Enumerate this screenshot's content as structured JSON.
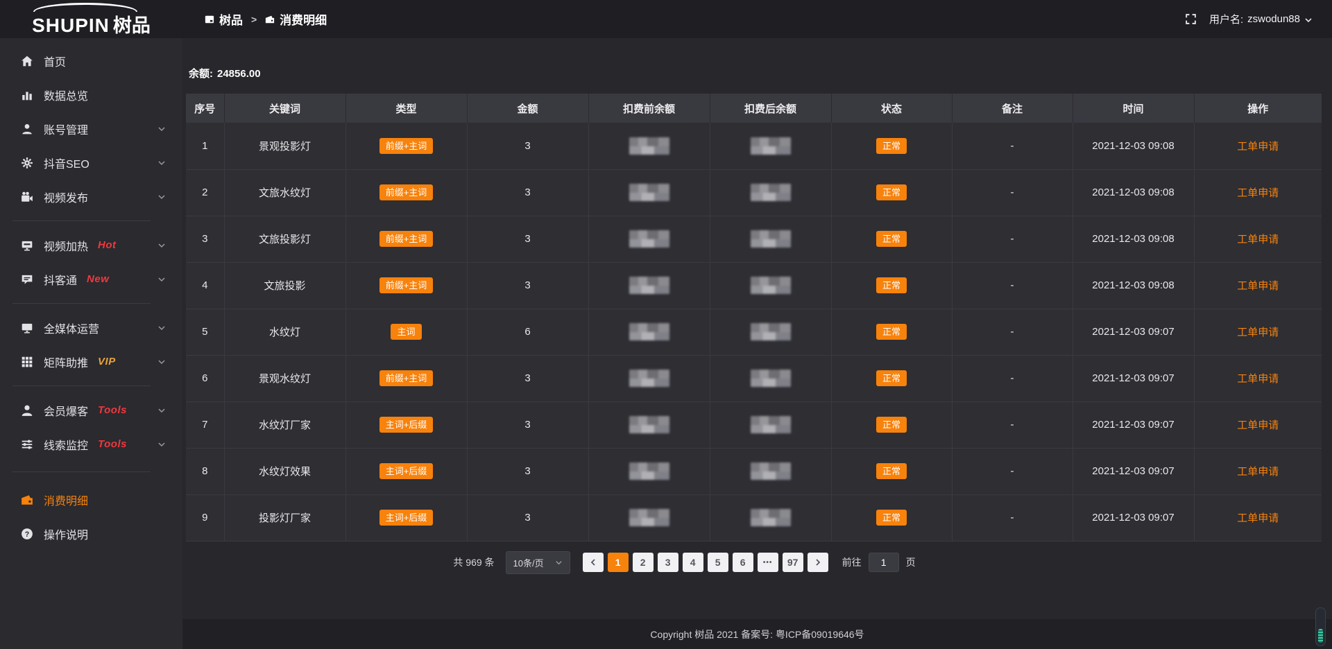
{
  "brand": {
    "logo_text": "SHUPIN",
    "logo_cn": "树品"
  },
  "topbar": {
    "breadcrumb": [
      {
        "label": "树品",
        "icon": "app-window-icon"
      },
      {
        "label": "消费明细",
        "icon": "wallet-icon"
      }
    ],
    "separator": ">",
    "username_label": "用户名:",
    "username": "zswodun88"
  },
  "sidebar": {
    "items": [
      {
        "label": "首页",
        "icon": "home-icon"
      },
      {
        "label": "数据总览",
        "icon": "bar-chart-icon"
      },
      {
        "label": "账号管理",
        "icon": "user-icon",
        "expandable": true
      },
      {
        "label": "抖音SEO",
        "icon": "gear-icon",
        "expandable": true
      },
      {
        "label": "视频发布",
        "icon": "video-camera-icon",
        "expandable": true
      },
      {
        "divider": true
      },
      {
        "label": "视频加热",
        "icon": "screen-cast-icon",
        "tag": "Hot",
        "tag_color": "#f0383e",
        "expandable": true
      },
      {
        "label": "抖客通",
        "icon": "chat-icon",
        "tag": "New",
        "tag_color": "#f0383e",
        "expandable": true
      },
      {
        "divider": true
      },
      {
        "label": "全媒体运营",
        "icon": "monitor-icon",
        "expandable": true
      },
      {
        "label": "矩阵助推",
        "icon": "grid-icon",
        "tag": "VIP",
        "tag_color": "#e8a33d",
        "expandable": true
      },
      {
        "divider": true
      },
      {
        "label": "会员爆客",
        "icon": "member-icon",
        "tag": "Tools",
        "tag_color": "#f0383e",
        "expandable": true
      },
      {
        "label": "线索监控",
        "icon": "filter-icon",
        "tag": "Tools",
        "tag_color": "#f0383e",
        "expandable": true
      },
      {
        "divider": true,
        "wide": true
      },
      {
        "label": "消费明细",
        "icon": "wallet-icon",
        "active": true
      },
      {
        "label": "操作说明",
        "icon": "question-icon"
      }
    ]
  },
  "main": {
    "balance_label": "余额:",
    "balance_value": "24856.00",
    "table": {
      "headers": [
        "序号",
        "关键词",
        "类型",
        "金额",
        "扣费前余额",
        "扣费后余额",
        "状态",
        "备注",
        "时间",
        "操作"
      ],
      "rows": [
        {
          "no": "1",
          "keyword": "景观投影灯",
          "type": "前缀+主词",
          "amount": "3",
          "status": "正常",
          "remark": "-",
          "time": "2021-12-03 09:08",
          "action": "工单申请"
        },
        {
          "no": "2",
          "keyword": "文旅水纹灯",
          "type": "前缀+主词",
          "amount": "3",
          "status": "正常",
          "remark": "-",
          "time": "2021-12-03 09:08",
          "action": "工单申请"
        },
        {
          "no": "3",
          "keyword": "文旅投影灯",
          "type": "前缀+主词",
          "amount": "3",
          "status": "正常",
          "remark": "-",
          "time": "2021-12-03 09:08",
          "action": "工单申请"
        },
        {
          "no": "4",
          "keyword": "文旅投影",
          "type": "前缀+主词",
          "amount": "3",
          "status": "正常",
          "remark": "-",
          "time": "2021-12-03 09:08",
          "action": "工单申请"
        },
        {
          "no": "5",
          "keyword": "水纹灯",
          "type": "主词",
          "amount": "6",
          "status": "正常",
          "remark": "-",
          "time": "2021-12-03 09:07",
          "action": "工单申请"
        },
        {
          "no": "6",
          "keyword": "景观水纹灯",
          "type": "前缀+主词",
          "amount": "3",
          "status": "正常",
          "remark": "-",
          "time": "2021-12-03 09:07",
          "action": "工单申请"
        },
        {
          "no": "7",
          "keyword": "水纹灯厂家",
          "type": "主词+后缀",
          "amount": "3",
          "status": "正常",
          "remark": "-",
          "time": "2021-12-03 09:07",
          "action": "工单申请"
        },
        {
          "no": "8",
          "keyword": "水纹灯效果",
          "type": "主词+后缀",
          "amount": "3",
          "status": "正常",
          "remark": "-",
          "time": "2021-12-03 09:07",
          "action": "工单申请"
        },
        {
          "no": "9",
          "keyword": "投影灯厂家",
          "type": "主词+后缀",
          "amount": "3",
          "status": "正常",
          "remark": "-",
          "time": "2021-12-03 09:07",
          "action": "工单申请"
        }
      ]
    },
    "pagination": {
      "total_text": "共 969 条",
      "page_size": "10条/页",
      "pages": [
        "1",
        "2",
        "3",
        "4",
        "5",
        "6",
        "...",
        "97"
      ],
      "active_page": "1",
      "goto_label": "前往",
      "goto_value": "1",
      "goto_suffix": "页"
    }
  },
  "footer": {
    "copyright": "Copyright 树品 2021 备案号: 粤ICP备09019646号"
  },
  "colors": {
    "accent": "#f7820c",
    "hot_red": "#f0383e",
    "vip_yellow": "#e8a33d",
    "sidebar_bg": "#2a2a2f",
    "topbar_bg": "#1e1e23"
  }
}
